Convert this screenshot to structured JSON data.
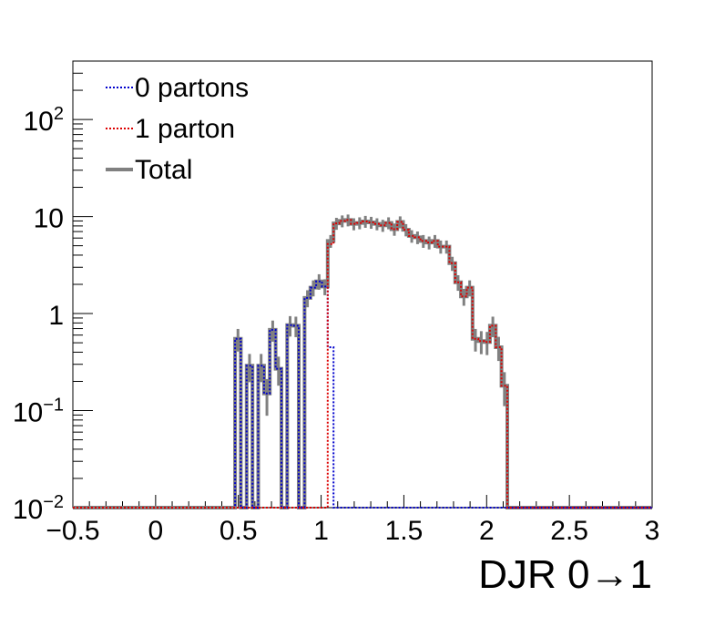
{
  "chart_data": {
    "type": "line",
    "xlabel": "DJR 0→1",
    "ylabel": "",
    "xlim": [
      -0.5,
      3.0
    ],
    "ylim": [
      0.01,
      400
    ],
    "yscale": "log",
    "grid": false,
    "legend_position": "top-left",
    "x_ticks": [
      {
        "value": -0.5,
        "label": "−0.5"
      },
      {
        "value": 0,
        "label": "0"
      },
      {
        "value": 0.5,
        "label": "0.5"
      },
      {
        "value": 1,
        "label": "1"
      },
      {
        "value": 1.5,
        "label": "1.5"
      },
      {
        "value": 2,
        "label": "2"
      },
      {
        "value": 2.5,
        "label": "2.5"
      },
      {
        "value": 3,
        "label": "3"
      }
    ],
    "y_ticks": [
      {
        "value": 0.01,
        "base": "10",
        "exp": "−2"
      },
      {
        "value": 0.1,
        "base": "10",
        "exp": "−1"
      },
      {
        "value": 1,
        "base": "1",
        "exp": ""
      },
      {
        "value": 10,
        "base": "10",
        "exp": ""
      },
      {
        "value": 100,
        "base": "10",
        "exp": "2"
      }
    ],
    "bin_width": 0.035,
    "x_start": -0.5,
    "series": [
      {
        "name": "0 partons",
        "color": "#0000cc",
        "style": "dotted",
        "values": [
          0.01,
          0.01,
          0.01,
          0.01,
          0.01,
          0.01,
          0.01,
          0.01,
          0.01,
          0.01,
          0.01,
          0.01,
          0.01,
          0.01,
          0.01,
          0.01,
          0.01,
          0.01,
          0.01,
          0.01,
          0.01,
          0.01,
          0.01,
          0.01,
          0.01,
          0.01,
          0.01,
          0.01,
          0.55,
          0.01,
          0.29,
          0.01,
          0.29,
          0.15,
          0.68,
          0.27,
          0.01,
          0.76,
          0.75,
          0.01,
          1.45,
          1.85,
          2.15,
          1.9,
          0.45,
          0.01,
          0.01,
          0.01,
          0.01,
          0.01,
          0.01,
          0.01,
          0.01,
          0.01,
          0.01,
          0.01,
          0.01,
          0.01,
          0.01,
          0.01,
          0.01,
          0.01,
          0.01,
          0.01,
          0.01,
          0.01,
          0.01,
          0.01,
          0.01,
          0.01,
          0.01,
          0.01,
          0.01,
          0.01,
          0.01,
          0.01,
          0.01,
          0.01,
          0.01,
          0.01,
          0.01,
          0.01,
          0.01,
          0.01,
          0.01,
          0.01,
          0.01,
          0.01,
          0.01,
          0.01,
          0.01,
          0.01,
          0.01,
          0.01,
          0.01,
          0.01,
          0.01,
          0.01,
          0.01,
          0.01
        ]
      },
      {
        "name": "1 parton",
        "color": "#dd0000",
        "style": "dotted",
        "values": [
          0.01,
          0.01,
          0.01,
          0.01,
          0.01,
          0.01,
          0.01,
          0.01,
          0.01,
          0.01,
          0.01,
          0.01,
          0.01,
          0.01,
          0.01,
          0.01,
          0.01,
          0.01,
          0.01,
          0.01,
          0.01,
          0.01,
          0.01,
          0.01,
          0.01,
          0.01,
          0.01,
          0.01,
          0.01,
          0.01,
          0.01,
          0.01,
          0.01,
          0.01,
          0.01,
          0.01,
          0.01,
          0.01,
          0.01,
          0.01,
          0.01,
          0.01,
          0.01,
          0.01,
          5.2,
          8.5,
          9.0,
          9.2,
          8.4,
          8.6,
          8.9,
          8.7,
          8.4,
          8.1,
          8.6,
          7.4,
          8.8,
          7.3,
          6.3,
          6.1,
          5.6,
          5.4,
          5.6,
          4.9,
          4.9,
          3.3,
          2.1,
          1.5,
          1.85,
          0.55,
          0.52,
          0.51,
          0.75,
          0.45,
          0.18,
          0.01,
          0.01,
          0.01,
          0.01,
          0.01,
          0.01,
          0.01,
          0.01,
          0.01,
          0.01,
          0.01,
          0.01,
          0.01,
          0.01,
          0.01,
          0.01,
          0.01,
          0.01,
          0.01,
          0.01,
          0.01,
          0.01,
          0.01,
          0.01,
          0.01
        ]
      },
      {
        "name": "Total",
        "color": "#808080",
        "style": "solid",
        "values": [
          0.01,
          0.01,
          0.01,
          0.01,
          0.01,
          0.01,
          0.01,
          0.01,
          0.01,
          0.01,
          0.01,
          0.01,
          0.01,
          0.01,
          0.01,
          0.01,
          0.01,
          0.01,
          0.01,
          0.01,
          0.01,
          0.01,
          0.01,
          0.01,
          0.01,
          0.01,
          0.01,
          0.01,
          0.55,
          0.01,
          0.29,
          0.01,
          0.29,
          0.15,
          0.68,
          0.27,
          0.01,
          0.76,
          0.75,
          0.01,
          1.45,
          1.85,
          2.15,
          1.9,
          5.6,
          8.5,
          9.0,
          9.2,
          8.4,
          8.6,
          8.9,
          8.7,
          8.4,
          8.1,
          8.6,
          7.4,
          8.8,
          7.3,
          6.3,
          6.1,
          5.6,
          5.4,
          5.6,
          4.9,
          4.9,
          3.3,
          2.1,
          1.5,
          1.85,
          0.55,
          0.52,
          0.51,
          0.75,
          0.45,
          0.18,
          0.01,
          0.01,
          0.01,
          0.01,
          0.01,
          0.01,
          0.01,
          0.01,
          0.01,
          0.01,
          0.01,
          0.01,
          0.01,
          0.01,
          0.01,
          0.01,
          0.01,
          0.01,
          0.01,
          0.01,
          0.01,
          0.01,
          0.01,
          0.01,
          0.01
        ]
      }
    ],
    "legend": [
      {
        "label": "0 partons",
        "series": 0
      },
      {
        "label": "1 parton",
        "series": 1
      },
      {
        "label": "Total",
        "series": 2
      }
    ]
  }
}
